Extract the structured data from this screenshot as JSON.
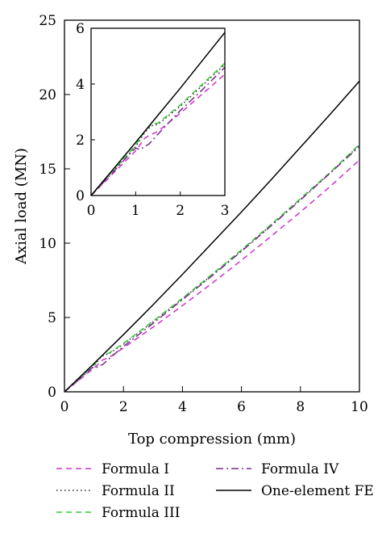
{
  "chart_data": [
    {
      "id": "main",
      "type": "line",
      "title": "",
      "xlabel": "Top compression (mm)",
      "ylabel": "Axial load (MN)",
      "xlim": [
        0,
        10
      ],
      "ylim": [
        0,
        25
      ],
      "xticks": [
        0,
        2,
        4,
        6,
        8,
        10
      ],
      "yticks": [
        0,
        5,
        10,
        15,
        20,
        25
      ],
      "grid": false,
      "legend_position": "bottom, below plot",
      "series": [
        {
          "name": "Formula I",
          "color": "#cc33cc",
          "style": "dashed",
          "points": [
            [
              0,
              0
            ],
            [
              0.5,
              0.8
            ],
            [
              1.0,
              1.6
            ],
            [
              1.3,
              2.15
            ],
            [
              1.5,
              2.3
            ],
            [
              2,
              2.95
            ],
            [
              3,
              4.35
            ],
            [
              4,
              5.8
            ],
            [
              5,
              7.3
            ],
            [
              6,
              8.85
            ],
            [
              7,
              10.45
            ],
            [
              8,
              12.1
            ],
            [
              9,
              13.8
            ],
            [
              10,
              15.6
            ]
          ]
        },
        {
          "name": "Formula II",
          "color": "#2a2a2a",
          "style": "dotted",
          "points": [
            [
              0,
              0
            ],
            [
              0.5,
              0.9
            ],
            [
              1.0,
              1.75
            ],
            [
              1.2,
              2.25
            ],
            [
              1.35,
              2.5
            ],
            [
              1.5,
              2.55
            ],
            [
              2,
              3.2
            ],
            [
              3,
              4.7
            ],
            [
              4,
              6.25
            ],
            [
              5,
              7.85
            ],
            [
              6,
              9.5
            ],
            [
              7,
              11.2
            ],
            [
              8,
              12.95
            ],
            [
              9,
              14.7
            ],
            [
              10,
              16.6
            ]
          ]
        },
        {
          "name": "Formula III",
          "color": "#33cc33",
          "style": "dashed",
          "points": [
            [
              0,
              0
            ],
            [
              0.5,
              0.9
            ],
            [
              1.0,
              1.8
            ],
            [
              1.2,
              2.3
            ],
            [
              1.35,
              2.55
            ],
            [
              1.5,
              2.6
            ],
            [
              2,
              3.25
            ],
            [
              3,
              4.75
            ],
            [
              4,
              6.3
            ],
            [
              5,
              7.9
            ],
            [
              6,
              9.55
            ],
            [
              7,
              11.25
            ],
            [
              8,
              13.0
            ],
            [
              9,
              14.75
            ],
            [
              10,
              16.65
            ]
          ]
        },
        {
          "name": "Formula IV",
          "color": "#7a2a8a",
          "style": "dashdot",
          "points": [
            [
              0,
              0
            ],
            [
              0.5,
              0.85
            ],
            [
              0.9,
              1.55
            ],
            [
              1.0,
              1.7
            ],
            [
              1.1,
              1.65
            ],
            [
              1.3,
              1.85
            ],
            [
              1.5,
              2.2
            ],
            [
              2,
              3.05
            ],
            [
              3,
              4.6
            ],
            [
              4,
              6.2
            ],
            [
              5,
              7.8
            ],
            [
              6,
              9.45
            ],
            [
              7,
              11.15
            ],
            [
              8,
              12.9
            ],
            [
              9,
              14.7
            ],
            [
              10,
              16.5
            ]
          ]
        },
        {
          "name": "One-element FE",
          "color": "#000000",
          "style": "solid",
          "points": [
            [
              0,
              0
            ],
            [
              1,
              1.9
            ],
            [
              2,
              3.85
            ],
            [
              3,
              5.85
            ],
            [
              4,
              7.9
            ],
            [
              5,
              10.0
            ],
            [
              6,
              12.1
            ],
            [
              7,
              14.25
            ],
            [
              8,
              16.45
            ],
            [
              9,
              18.65
            ],
            [
              10,
              20.9
            ]
          ]
        }
      ]
    },
    {
      "id": "inset",
      "type": "line",
      "xlim": [
        0,
        3
      ],
      "ylim": [
        0,
        6
      ],
      "xticks": [
        0,
        1,
        2,
        3
      ],
      "yticks": [
        0,
        2,
        4,
        6
      ],
      "grid": false,
      "series": [
        {
          "name": "Formula I",
          "color": "#cc33cc",
          "style": "dashed",
          "points": [
            [
              0,
              0
            ],
            [
              0.5,
              0.8
            ],
            [
              1.0,
              1.6
            ],
            [
              1.2,
              2.05
            ],
            [
              1.3,
              2.15
            ],
            [
              1.5,
              2.3
            ],
            [
              2,
              2.95
            ],
            [
              2.5,
              3.65
            ],
            [
              3,
              4.35
            ]
          ]
        },
        {
          "name": "Formula II",
          "color": "#2a2a2a",
          "style": "dotted",
          "points": [
            [
              0,
              0
            ],
            [
              0.5,
              0.9
            ],
            [
              1.0,
              1.75
            ],
            [
              1.2,
              2.25
            ],
            [
              1.35,
              2.5
            ],
            [
              1.5,
              2.55
            ],
            [
              2,
              3.2
            ],
            [
              2.5,
              3.95
            ],
            [
              3,
              4.7
            ]
          ]
        },
        {
          "name": "Formula III",
          "color": "#33cc33",
          "style": "dashed",
          "points": [
            [
              0,
              0
            ],
            [
              0.5,
              0.9
            ],
            [
              1.0,
              1.8
            ],
            [
              1.2,
              2.3
            ],
            [
              1.35,
              2.55
            ],
            [
              1.5,
              2.6
            ],
            [
              2,
              3.25
            ],
            [
              2.5,
              4.0
            ],
            [
              3,
              4.75
            ]
          ]
        },
        {
          "name": "Formula IV",
          "color": "#7a2a8a",
          "style": "dashdot",
          "points": [
            [
              0,
              0
            ],
            [
              0.5,
              0.85
            ],
            [
              0.9,
              1.55
            ],
            [
              1.0,
              1.7
            ],
            [
              1.1,
              1.65
            ],
            [
              1.3,
              1.85
            ],
            [
              1.5,
              2.2
            ],
            [
              2,
              3.05
            ],
            [
              2.5,
              3.8
            ],
            [
              3,
              4.6
            ]
          ]
        },
        {
          "name": "One-element FE",
          "color": "#000000",
          "style": "solid",
          "points": [
            [
              0,
              0
            ],
            [
              0.5,
              0.95
            ],
            [
              1,
              1.9
            ],
            [
              1.5,
              2.88
            ],
            [
              2,
              3.85
            ],
            [
              2.5,
              4.85
            ],
            [
              3,
              5.85
            ]
          ]
        }
      ]
    }
  ],
  "legend": {
    "items": [
      {
        "label": "Formula I",
        "color": "#cc33cc",
        "style": "dashed"
      },
      {
        "label": "Formula IV",
        "color": "#7a2a8a",
        "style": "dashdot"
      },
      {
        "label": "Formula II",
        "color": "#2a2a2a",
        "style": "dotted"
      },
      {
        "label": "One-element FE",
        "color": "#000000",
        "style": "solid"
      },
      {
        "label": "Formula III",
        "color": "#33cc33",
        "style": "dashed"
      }
    ]
  }
}
